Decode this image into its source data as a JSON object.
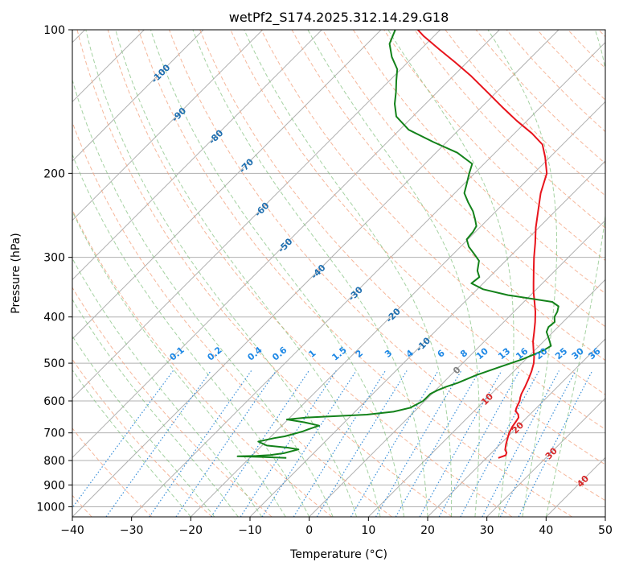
{
  "chart_data": {
    "type": "line",
    "subtype": "skew-t log-p sounding",
    "title": "wetPf2_S174.2025.312.14.29.G18",
    "xlabel": "Temperature (°C)",
    "ylabel": "Pressure (hPa)",
    "xlim": [
      -40,
      50
    ],
    "ylim": [
      1050,
      100
    ],
    "y_scale": "log",
    "grid": true,
    "x_ticks": [
      -40,
      -30,
      -20,
      -10,
      0,
      10,
      20,
      30,
      40,
      50
    ],
    "y_ticks": [
      1000,
      900,
      800,
      700,
      600,
      500,
      400,
      300,
      200,
      100
    ],
    "colors": {
      "temperature": "#e8141c",
      "dewpoint": "#13821a",
      "dry_adiabats": "#f4a582",
      "moist_adiabats": "#7fbf7b",
      "mixing_ratio": "#3a8fd9",
      "isotherm_labels_cold": "#1f6fb0",
      "isotherm_labels_warm": "#d62728",
      "isotherm_label_zero": "#808080",
      "mixing_ratio_labels": "#1e88e5"
    },
    "series": [
      {
        "role": "temperature",
        "points": [
          [
            22.0,
            790
          ],
          [
            22.8,
            780
          ],
          [
            22.5,
            770
          ],
          [
            21.8,
            760
          ],
          [
            21.0,
            740
          ],
          [
            20.3,
            720
          ],
          [
            19.6,
            700
          ],
          [
            19.1,
            680
          ],
          [
            18.8,
            660
          ],
          [
            18.6,
            650
          ],
          [
            18.0,
            640
          ],
          [
            17.0,
            630
          ],
          [
            16.6,
            620
          ],
          [
            16.0,
            600
          ],
          [
            15.5,
            590
          ],
          [
            15.1,
            580
          ],
          [
            14.5,
            560
          ],
          [
            13.8,
            540
          ],
          [
            13.0,
            520
          ],
          [
            12.0,
            500
          ],
          [
            11.0,
            485
          ],
          [
            9.8,
            470
          ],
          [
            8.2,
            450
          ],
          [
            6.8,
            430
          ],
          [
            5.3,
            410
          ],
          [
            3.6,
            390
          ],
          [
            1.6,
            370
          ],
          [
            0.0,
            355
          ],
          [
            -1.5,
            340
          ],
          [
            -3.6,
            320
          ],
          [
            -5.8,
            300
          ],
          [
            -8.0,
            280
          ],
          [
            -10.5,
            260
          ],
          [
            -12.9,
            240
          ],
          [
            -15.5,
            220
          ],
          [
            -17.8,
            200
          ],
          [
            -20.8,
            185
          ],
          [
            -23.4,
            174
          ],
          [
            -27.0,
            165
          ],
          [
            -31.8,
            155
          ],
          [
            -36.6,
            145
          ],
          [
            -41.6,
            135
          ],
          [
            -47.0,
            125
          ],
          [
            -52.0,
            117
          ],
          [
            -56.8,
            110
          ],
          [
            -61.8,
            103
          ],
          [
            -63.8,
            100
          ]
        ]
      },
      {
        "role": "dewpoint",
        "points": [
          [
            -13.8,
            790
          ],
          [
            -18.5,
            786
          ],
          [
            -22.3,
            784
          ],
          [
            -19.2,
            782
          ],
          [
            -17.0,
            779
          ],
          [
            -15.0,
            772
          ],
          [
            -13.2,
            758
          ],
          [
            -15.2,
            752
          ],
          [
            -19.2,
            744
          ],
          [
            -21.3,
            730
          ],
          [
            -19.2,
            718
          ],
          [
            -17.7,
            712
          ],
          [
            -16.8,
            705
          ],
          [
            -15.5,
            695
          ],
          [
            -14.9,
            688
          ],
          [
            -13.7,
            676
          ],
          [
            -16.8,
            665
          ],
          [
            -20.2,
            656
          ],
          [
            -17.2,
            650
          ],
          [
            -7.5,
            641
          ],
          [
            -3.5,
            632
          ],
          [
            -1.3,
            620
          ],
          [
            -0.3,
            600
          ],
          [
            -0.3,
            590
          ],
          [
            -0.3,
            580
          ],
          [
            0.3,
            570
          ],
          [
            1.2,
            560
          ],
          [
            2.5,
            550
          ],
          [
            4.3,
            530
          ],
          [
            6.8,
            510
          ],
          [
            9.5,
            490
          ],
          [
            11.5,
            470
          ],
          [
            12.0,
            460
          ],
          [
            10.5,
            445
          ],
          [
            8.9,
            430
          ],
          [
            8.4,
            420
          ],
          [
            8.6,
            410
          ],
          [
            7.7,
            400
          ],
          [
            7.3,
            390
          ],
          [
            6.6,
            380
          ],
          [
            4.8,
            372
          ],
          [
            -3.8,
            360
          ],
          [
            -9.0,
            350
          ],
          [
            -12.0,
            340
          ],
          [
            -11.7,
            330
          ],
          [
            -13.1,
            320
          ],
          [
            -14.5,
            305
          ],
          [
            -16.5,
            295
          ],
          [
            -18.6,
            285
          ],
          [
            -20.2,
            275
          ],
          [
            -20.4,
            265
          ],
          [
            -20.8,
            258
          ],
          [
            -22.1,
            250
          ],
          [
            -23.9,
            240
          ],
          [
            -26.2,
            230
          ],
          [
            -28.4,
            220
          ],
          [
            -29.6,
            210
          ],
          [
            -30.9,
            200
          ],
          [
            -32.0,
            191
          ],
          [
            -36.4,
            181
          ],
          [
            -42.2,
            172
          ],
          [
            -48.5,
            162
          ],
          [
            -52.8,
            152
          ],
          [
            -55.2,
            143
          ],
          [
            -57.0,
            135
          ],
          [
            -58.8,
            128
          ],
          [
            -60.6,
            121
          ],
          [
            -63.6,
            114
          ],
          [
            -66.2,
            107
          ],
          [
            -67.6,
            100
          ]
        ]
      }
    ],
    "isotherm_labels": [
      "-100",
      "-90",
      "-80",
      "-70",
      "-60",
      "-50",
      "-40",
      "-30",
      "-20",
      "-10",
      "0",
      "10",
      "20",
      "30",
      "40"
    ],
    "mixing_ratio_labels": [
      "0.1",
      "0.2",
      "0.4",
      "0.6",
      "1",
      "1.5",
      "2",
      "3",
      "4",
      "6",
      "8",
      "10",
      "13",
      "16",
      "20",
      "25",
      "30",
      "36"
    ]
  }
}
